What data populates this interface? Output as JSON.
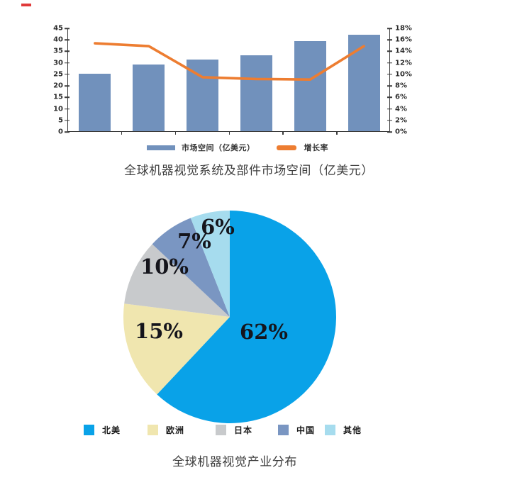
{
  "decorations": {
    "red_dash_color": "#e03a3a"
  },
  "chart_data": [
    {
      "type": "bar+line",
      "title": "全球机器视觉系统及部件市场空间（亿美元）",
      "left_axis": {
        "min": 0,
        "max": 45,
        "step": 5,
        "ticks": [
          "0",
          "5",
          "10",
          "15",
          "20",
          "25",
          "30",
          "35",
          "40",
          "45"
        ]
      },
      "right_axis": {
        "min": 0,
        "max": 18,
        "step": 2,
        "ticks": [
          "0%",
          "2%",
          "4%",
          "6%",
          "8%",
          "10%",
          "12%",
          "14%",
          "16%",
          "18%"
        ]
      },
      "x_tick_labels_visible": false,
      "n_categories": 6,
      "series": [
        {
          "name": "市场空间（亿美元）",
          "type": "bar",
          "axis": "left",
          "color": "#7191BC",
          "values": [
            25,
            29,
            31,
            33,
            39,
            42
          ]
        },
        {
          "name": "增长率",
          "type": "line",
          "axis": "right",
          "color": "#ED7D31",
          "values": [
            15.4,
            14.9,
            9.5,
            9.2,
            9.1,
            14.9
          ]
        }
      ],
      "legend_position": "bottom",
      "grid": false
    },
    {
      "type": "pie",
      "title": "全球机器视觉产业分布",
      "start_angle_deg": 0,
      "direction": "clockwise",
      "slices": [
        {
          "name": "北美",
          "value": 62,
          "pct_label": "62%",
          "color": "#09A2E8"
        },
        {
          "name": "欧洲",
          "value": 15,
          "pct_label": "15%",
          "color": "#F0E6AF"
        },
        {
          "name": "日本",
          "value": 10,
          "pct_label": "10%",
          "color": "#C8CACC"
        },
        {
          "name": "中国",
          "value": 7,
          "pct_label": "7%",
          "color": "#7A96C2"
        },
        {
          "name": "其他",
          "value": 6,
          "pct_label": "6%",
          "color": "#A6DCEE"
        }
      ],
      "legend_position": "bottom"
    }
  ]
}
